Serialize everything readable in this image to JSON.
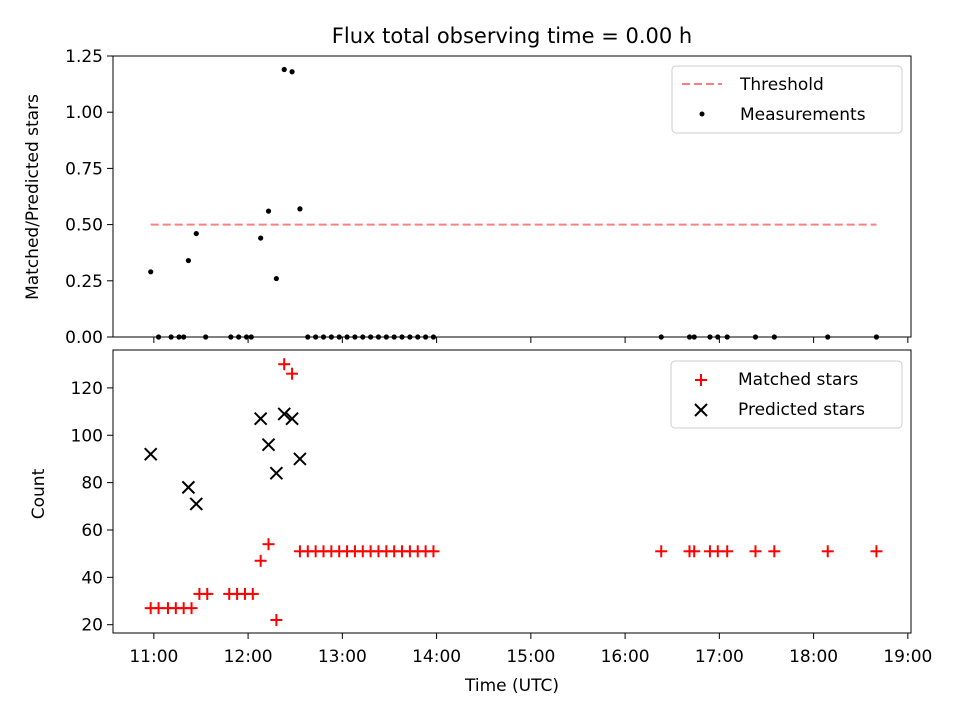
{
  "title": "Flux total observing time = 0.00 h",
  "chart_data": [
    {
      "type": "scatter",
      "ylabel": "Matched/Predicted stars",
      "xlim": [
        "10:34",
        "19:02"
      ],
      "ylim": [
        0,
        1.25
      ],
      "yticks": [
        "0.00",
        "0.25",
        "0.50",
        "0.75",
        "1.00",
        "1.25"
      ],
      "xticks": [
        "11:00",
        "12:00",
        "13:00",
        "14:00",
        "15:00",
        "16:00",
        "17:00",
        "18:00",
        "19:00"
      ],
      "xtick_labels_shown": false,
      "threshold": {
        "name": "Threshold",
        "value": 0.5,
        "x_range": [
          "10:58",
          "18:40"
        ],
        "color": "#ff7f7f",
        "style": "dashed"
      },
      "series": [
        {
          "name": "Measurements",
          "color": "#000000",
          "marker": "dot",
          "points": [
            [
              "10:58",
              0.29
            ],
            [
              "11:03",
              0.0
            ],
            [
              "11:11",
              0.0
            ],
            [
              "11:16",
              0.0
            ],
            [
              "11:19",
              0.0
            ],
            [
              "11:22",
              0.34
            ],
            [
              "11:27",
              0.46
            ],
            [
              "11:33",
              0.0
            ],
            [
              "11:49",
              0.0
            ],
            [
              "11:54",
              0.0
            ],
            [
              "11:59",
              0.0
            ],
            [
              "12:02",
              0.0
            ],
            [
              "12:08",
              0.44
            ],
            [
              "12:13",
              0.56
            ],
            [
              "12:18",
              0.26
            ],
            [
              "12:23",
              1.19
            ],
            [
              "12:28",
              1.18
            ],
            [
              "12:33",
              0.57
            ],
            [
              "12:38",
              0.0
            ],
            [
              "12:43",
              0.0
            ],
            [
              "12:48",
              0.0
            ],
            [
              "12:53",
              0.0
            ],
            [
              "12:58",
              0.0
            ],
            [
              "13:03",
              0.0
            ],
            [
              "13:08",
              0.0
            ],
            [
              "13:13",
              0.0
            ],
            [
              "13:18",
              0.0
            ],
            [
              "13:23",
              0.0
            ],
            [
              "13:28",
              0.0
            ],
            [
              "13:33",
              0.0
            ],
            [
              "13:38",
              0.0
            ],
            [
              "13:43",
              0.0
            ],
            [
              "13:48",
              0.0
            ],
            [
              "13:53",
              0.0
            ],
            [
              "13:58",
              0.0
            ],
            [
              "16:23",
              0.0
            ],
            [
              "16:41",
              0.0
            ],
            [
              "16:44",
              0.0
            ],
            [
              "16:54",
              0.0
            ],
            [
              "16:59",
              0.0
            ],
            [
              "17:05",
              0.0
            ],
            [
              "17:23",
              0.0
            ],
            [
              "17:35",
              0.0
            ],
            [
              "18:09",
              0.0
            ],
            [
              "18:40",
              0.0
            ]
          ]
        }
      ],
      "legend": {
        "position": "top-right",
        "entries": [
          "Threshold",
          "Measurements"
        ]
      }
    },
    {
      "type": "scatter",
      "xlabel": "Time (UTC)",
      "ylabel": "Count",
      "xlim": [
        "10:34",
        "19:02"
      ],
      "ylim": [
        16.5,
        136
      ],
      "yticks": [
        "20",
        "40",
        "60",
        "80",
        "100",
        "120"
      ],
      "xticks": [
        "11:00",
        "12:00",
        "13:00",
        "14:00",
        "15:00",
        "16:00",
        "17:00",
        "18:00",
        "19:00"
      ],
      "series": [
        {
          "name": "Matched stars",
          "color": "#ff0000",
          "marker": "plus",
          "points": [
            [
              "10:58",
              27
            ],
            [
              "11:03",
              27
            ],
            [
              "11:09",
              27
            ],
            [
              "11:14",
              27
            ],
            [
              "11:19",
              27
            ],
            [
              "11:24",
              27
            ],
            [
              "11:29",
              33
            ],
            [
              "11:34",
              33
            ],
            [
              "11:48",
              33
            ],
            [
              "11:53",
              33
            ],
            [
              "11:58",
              33
            ],
            [
              "12:03",
              33
            ],
            [
              "12:08",
              47
            ],
            [
              "12:13",
              54
            ],
            [
              "12:18",
              22
            ],
            [
              "12:23",
              130
            ],
            [
              "12:28",
              126
            ],
            [
              "12:33",
              51
            ],
            [
              "12:38",
              51
            ],
            [
              "12:43",
              51
            ],
            [
              "12:48",
              51
            ],
            [
              "12:53",
              51
            ],
            [
              "12:58",
              51
            ],
            [
              "13:03",
              51
            ],
            [
              "13:08",
              51
            ],
            [
              "13:13",
              51
            ],
            [
              "13:18",
              51
            ],
            [
              "13:23",
              51
            ],
            [
              "13:28",
              51
            ],
            [
              "13:33",
              51
            ],
            [
              "13:38",
              51
            ],
            [
              "13:43",
              51
            ],
            [
              "13:48",
              51
            ],
            [
              "13:53",
              51
            ],
            [
              "13:58",
              51
            ],
            [
              "16:23",
              51
            ],
            [
              "16:41",
              51
            ],
            [
              "16:44",
              51
            ],
            [
              "16:54",
              51
            ],
            [
              "16:59",
              51
            ],
            [
              "17:05",
              51
            ],
            [
              "17:23",
              51
            ],
            [
              "17:35",
              51
            ],
            [
              "18:09",
              51
            ],
            [
              "18:40",
              51
            ]
          ]
        },
        {
          "name": "Predicted stars",
          "color": "#000000",
          "marker": "x",
          "points": [
            [
              "10:58",
              92
            ],
            [
              "11:22",
              78
            ],
            [
              "11:27",
              71
            ],
            [
              "12:08",
              107
            ],
            [
              "12:13",
              96
            ],
            [
              "12:18",
              84
            ],
            [
              "12:23",
              109
            ],
            [
              "12:28",
              107
            ],
            [
              "12:33",
              90
            ]
          ]
        }
      ],
      "legend": {
        "position": "top-right",
        "entries": [
          "Matched stars",
          "Predicted stars"
        ]
      }
    }
  ]
}
